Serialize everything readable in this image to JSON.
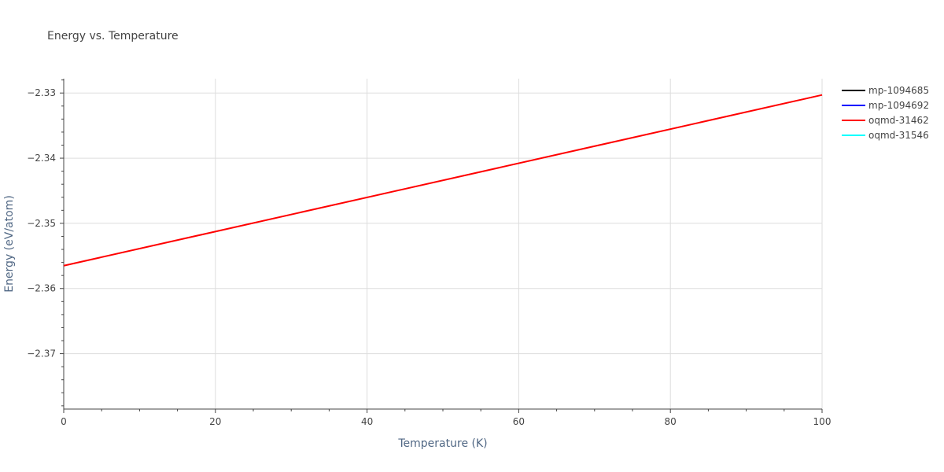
{
  "chart_data": {
    "type": "line",
    "title": "Energy vs. Temperature",
    "xlabel": "Temperature (K)",
    "ylabel": "Energy (eV/atom)",
    "xlim": [
      0,
      100
    ],
    "ylim": [
      -2.3785,
      -2.3278
    ],
    "x_ticks": [
      0,
      20,
      40,
      60,
      80,
      100
    ],
    "x_tick_labels": [
      "0",
      "20",
      "40",
      "60",
      "80",
      "100"
    ],
    "y_ticks": [
      -2.33,
      -2.34,
      -2.35,
      -2.36,
      -2.37
    ],
    "y_tick_labels": [
      "−2.33",
      "−2.34",
      "−2.35",
      "−2.36",
      "−2.37"
    ],
    "grid": true,
    "legend_position": "top-right",
    "series": [
      {
        "name": "mp-1094685",
        "color": "#000000",
        "x": [],
        "y": []
      },
      {
        "name": "mp-1094692",
        "color": "#0000ff",
        "x": [],
        "y": []
      },
      {
        "name": "oqmd-31462",
        "color": "#ff0000",
        "x": [
          0,
          100
        ],
        "y": [
          -2.3565,
          -2.3303
        ]
      },
      {
        "name": "oqmd-31546",
        "color": "#00ffff",
        "x": [],
        "y": []
      }
    ]
  }
}
